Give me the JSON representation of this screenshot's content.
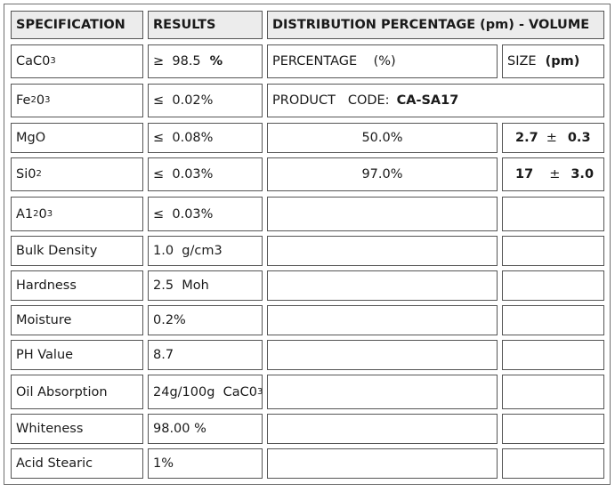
{
  "headers": {
    "specification": "SPECIFICATION",
    "results": "RESULTS",
    "distribution": "DISTRIBUTION PERCENTAGE (pm) - VOLUME"
  },
  "rows": [
    {
      "spec": "CaC0",
      "spec_sub": "3",
      "result": "≥  98.5",
      "result_unit": "%"
    },
    {
      "spec": "Fe",
      "spec_sub": "2",
      "spec_tail": "0",
      "spec_sub2": "3",
      "result": "≤  0.02%"
    },
    {
      "spec": "MgO",
      "result": "≤  0.08%"
    },
    {
      "spec": "Si0",
      "spec_sub": "2",
      "result": "≤  0.03%"
    },
    {
      "spec": "A1",
      "spec_sub": "2",
      "spec_tail": "0",
      "spec_sub2": "3",
      "result": "≤  0.03%"
    },
    {
      "spec": "Bulk Density",
      "result": "1.0  g/cm3"
    },
    {
      "spec": "Hardness",
      "result": "2.5  Moh"
    },
    {
      "spec": "Moisture",
      "result": "0.2%"
    },
    {
      "spec": "PH Value",
      "result": "8.7"
    },
    {
      "spec": "Oil Absorption",
      "result": "24g/100g  CaC0",
      "result_sub": "3"
    },
    {
      "spec": "Whiteness",
      "result": "98.00 %"
    },
    {
      "spec": "Acid Stearic",
      "result": "1%"
    }
  ],
  "distribution": {
    "percentage_label": "PERCENTAGE    (%)",
    "size_label": "SIZE",
    "size_unit": "(pm)",
    "product_code_label": "PRODUCT   CODE:",
    "product_code_value": "CA-SA17",
    "entries": [
      {
        "percentage": "50.0%",
        "size": "2.7",
        "pm": "±",
        "tolerance": "0.3"
      },
      {
        "percentage": "97.0%",
        "size": "17",
        "pm": "±",
        "tolerance": "3.0"
      }
    ]
  }
}
